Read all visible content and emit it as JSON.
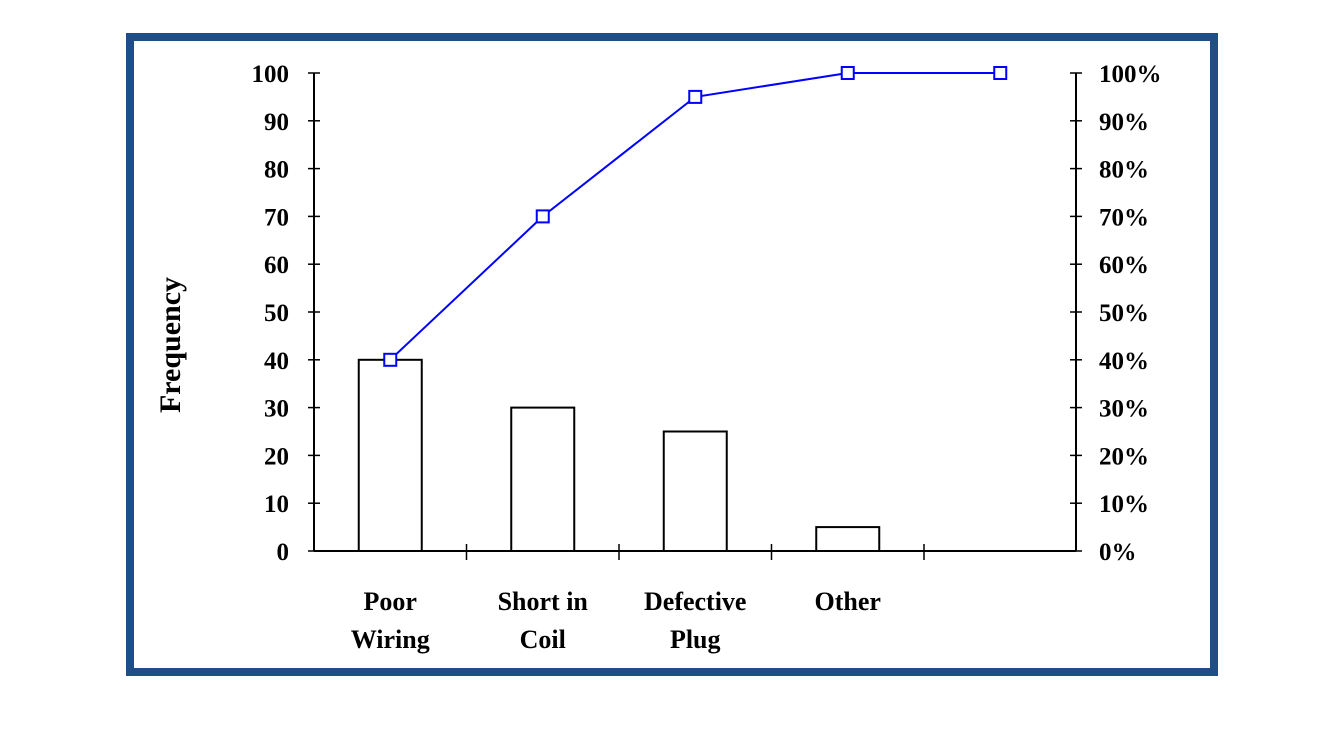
{
  "chart_data": {
    "type": "bar",
    "categories": [
      "Poor Wiring",
      "Short in Coil",
      "Defective Plug",
      "Other"
    ],
    "category_label_lines": [
      [
        "Poor",
        "Wiring"
      ],
      [
        "Short in",
        "Coil"
      ],
      [
        "Defective",
        "Plug"
      ],
      [
        "Other"
      ]
    ],
    "values": [
      40,
      30,
      25,
      5
    ],
    "ylabel": "Frequency",
    "ylim": [
      0,
      100
    ],
    "yticks": [
      0,
      10,
      20,
      30,
      40,
      50,
      60,
      70,
      80,
      90,
      100
    ],
    "y2lim": [
      0,
      100
    ],
    "y2ticks": [
      "0%",
      "10%",
      "20%",
      "30%",
      "40%",
      "50%",
      "60%",
      "70%",
      "80%",
      "90%",
      "100%"
    ],
    "cumulative_percent": [
      40,
      70,
      95,
      100,
      100
    ],
    "grid": false,
    "colors": {
      "frame": "#1f4e86",
      "line": "#0000ff",
      "bar_fill": "#ffffff",
      "bar_stroke": "#000000"
    }
  }
}
